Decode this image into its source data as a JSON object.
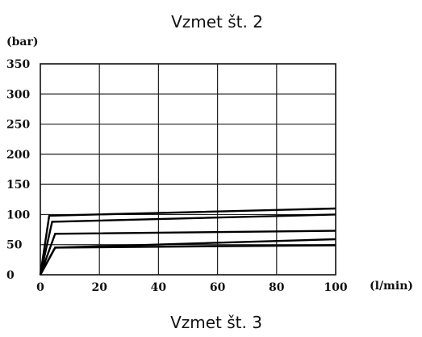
{
  "page": {
    "top_caption": "Vzmet št. 2",
    "bottom_caption": "Vzmet št. 3"
  },
  "chart_data": {
    "type": "line",
    "title": "",
    "xlabel": "(l/min)",
    "ylabel": "(bar)",
    "xlim": [
      0,
      100
    ],
    "ylim": [
      0,
      350
    ],
    "x_ticks": [
      0,
      20,
      40,
      60,
      80,
      100
    ],
    "y_ticks": [
      0,
      50,
      100,
      150,
      200,
      250,
      300,
      350
    ],
    "grid": true,
    "series": [
      {
        "x": [
          0,
          3,
          100
        ],
        "y": [
          0,
          98,
          110
        ]
      },
      {
        "x": [
          0,
          4,
          100
        ],
        "y": [
          0,
          88,
          100
        ]
      },
      {
        "x": [
          0,
          5,
          100
        ],
        "y": [
          0,
          68,
          73
        ]
      },
      {
        "x": [
          0,
          5,
          100
        ],
        "y": [
          0,
          45,
          59
        ]
      },
      {
        "x": [
          0,
          5,
          100
        ],
        "y": [
          0,
          45,
          49
        ]
      }
    ]
  }
}
